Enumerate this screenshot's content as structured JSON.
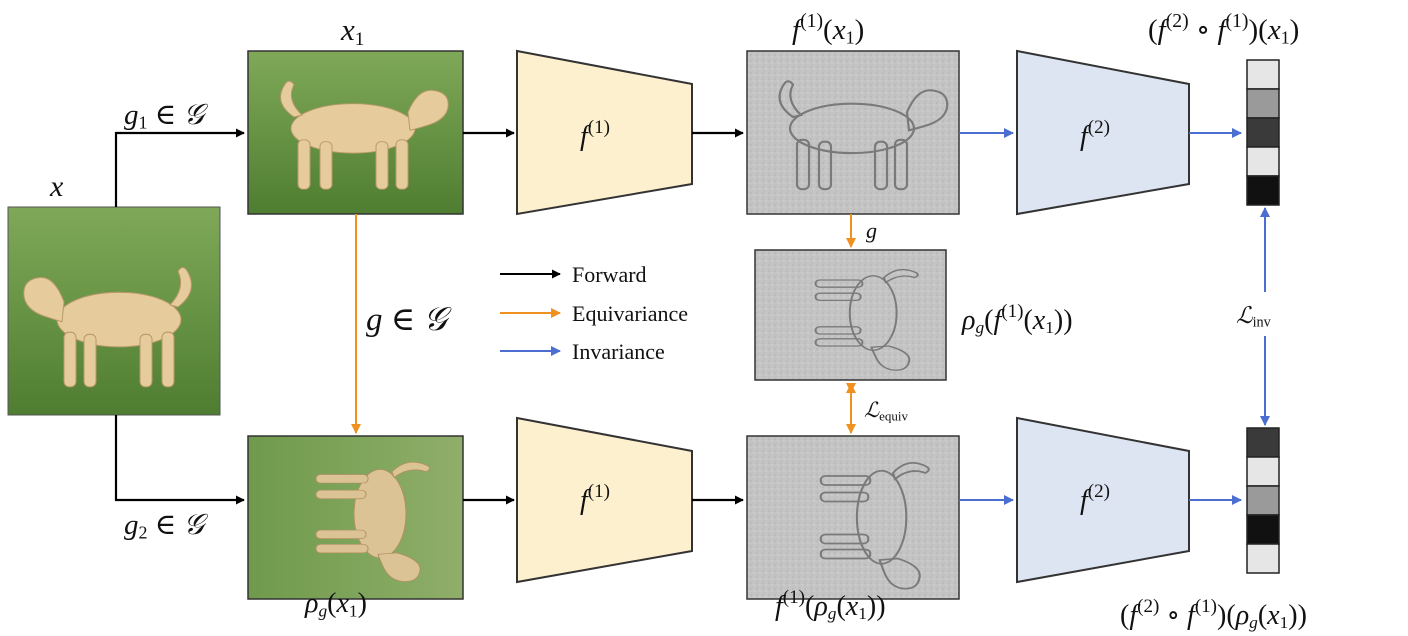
{
  "legend": [
    {
      "label": "Forward",
      "color": "#000000"
    },
    {
      "label": "Equivariance",
      "color": "#f0901e"
    },
    {
      "label": "Invariance",
      "color": "#4a6fd0"
    }
  ],
  "colors": {
    "encoder_f1_fill": "#fdf0cf",
    "encoder_f2_fill": "#dde5f3",
    "forward_arrow": "#000000",
    "equivariance_arrow": "#f0901e",
    "invariance_arrow": "#4a6fd0",
    "grass": "#5b8c3a",
    "dog": "#e3c99a",
    "feature_map": "#c8c8c8"
  },
  "icons": {
    "input_photo": "dog-photo",
    "feature_maps": "embossed-dog-feature-map"
  },
  "vectors": {
    "top_cells": [
      "#e6e6e6",
      "#9a9a9a",
      "#3a3a3a",
      "#e6e6e6",
      "#111111"
    ],
    "bottom_cells": [
      "#3a3a3a",
      "#e6e6e6",
      "#9a9a9a",
      "#111111",
      "#e6e6e6"
    ]
  }
}
